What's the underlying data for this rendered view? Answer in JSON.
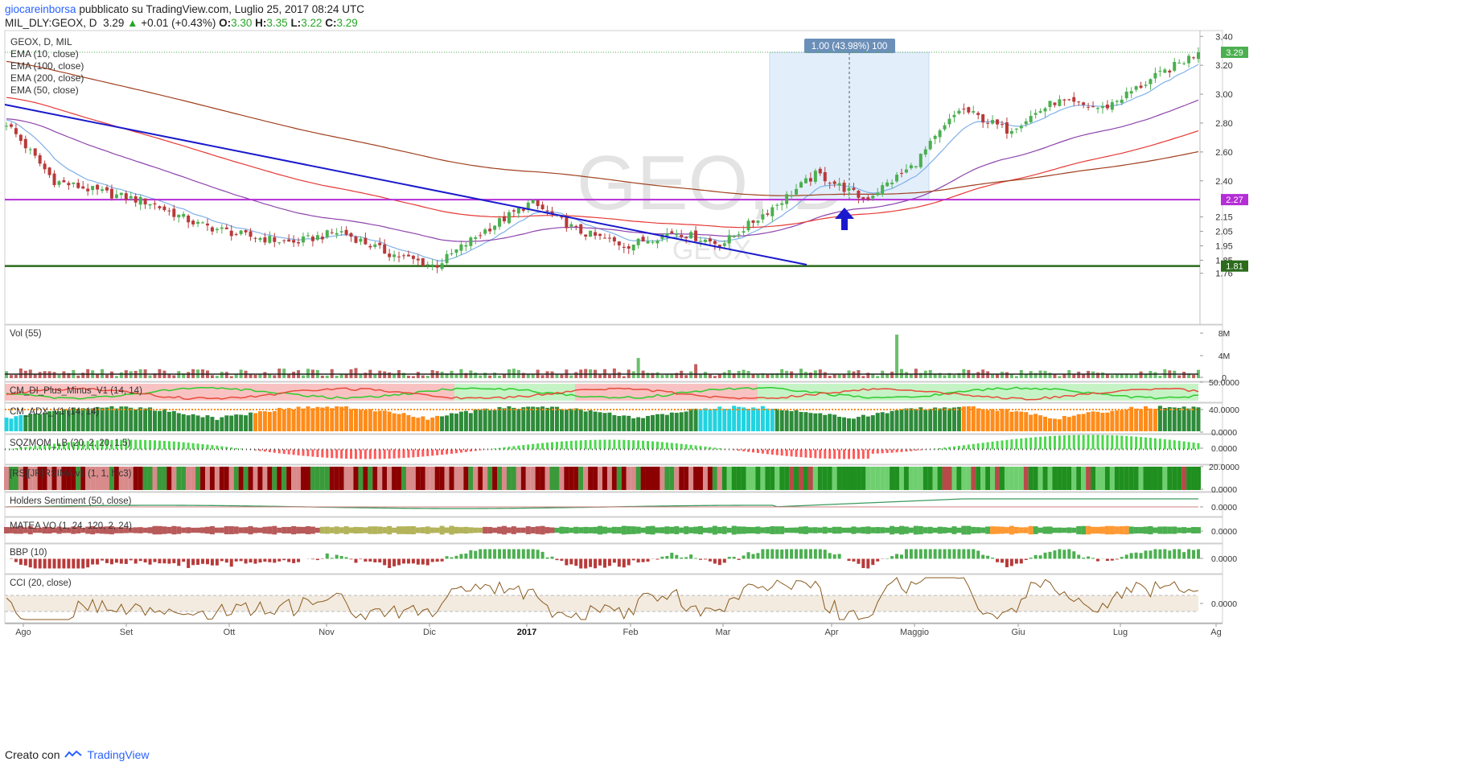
{
  "header": {
    "user": "giocareinborsa",
    "published_text": "pubblicato su TradingView.com, Luglio 25, 2017 08:24 UTC",
    "symbol": "MIL_DLY:GEOX, D",
    "last": "3.29",
    "change_arrow": "▲",
    "change": "+0.01 (+0.43%)",
    "open_label": "O:",
    "open": "3.30",
    "high_label": "H:",
    "high": "3.35",
    "low_label": "L:",
    "low": "3.22",
    "close_label": "C:",
    "close": "3.29"
  },
  "watermark": {
    "main": "GEO, D",
    "sub": "GEOX"
  },
  "legend": {
    "title": "GEOX, D, MIL",
    "items": [
      "EMA (10, close)",
      "EMA (100, close)",
      "EMA (200, close)",
      "EMA (50, close)"
    ]
  },
  "measure_label": "1.00 (43.98%) 100",
  "price_axis": {
    "ticks": [
      "3.40",
      "3.20",
      "3.00",
      "2.80",
      "2.60",
      "2.40",
      "2.15",
      "2.05",
      "1.95",
      "1.85",
      "1.76"
    ],
    "badges": [
      "3.29",
      "2.27",
      "1.81"
    ]
  },
  "time_axis": [
    "Ago",
    "Set",
    "Ott",
    "Nov",
    "Dic",
    "2017",
    "Feb",
    "Mar",
    "Apr",
    "Maggio",
    "Giu",
    "Lug",
    "Ag"
  ],
  "panes": [
    {
      "title": "Vol (55)",
      "ticks": [
        "8M",
        "4M",
        "0"
      ]
    },
    {
      "title": "CM_DI_Plus_Minus_V1 (14, 14)",
      "ticks": [
        "50.0000"
      ]
    },
    {
      "title": "CM_ADX_V1 (14, 14)",
      "ticks": [
        "40.0000",
        "0.0000"
      ]
    },
    {
      "title": "SQZMOM_LB (20, 2, 20, 1.5)",
      "ticks": [
        "0.0000"
      ]
    },
    {
      "title": "[RS][JR]RSIMA v1 (1, 1, hlc3)",
      "ticks": [
        "20.0000",
        "0.0000"
      ]
    },
    {
      "title": "Holders Sentiment (50, close)",
      "ticks": [
        "0.0000"
      ]
    },
    {
      "title": "MATEA VO (1, 24, 120, 2, 24)",
      "ticks": [
        "0.0000"
      ]
    },
    {
      "title": "BBP (10)",
      "ticks": [
        "0.0000"
      ]
    },
    {
      "title": "CCI (20, close)",
      "ticks": [
        "0.0000"
      ]
    }
  ],
  "footer": {
    "created": "Creato con",
    "brand": "TradingView"
  },
  "colors": {
    "up": "#4caf50",
    "down": "#b83a3a",
    "trendline": "#1a1acc",
    "support_purple": "#b42ed6",
    "support_green": "#2b6b1b",
    "ema10": "#7fb0e8",
    "ema50": "#8e44ad",
    "ema100": "#e53935",
    "ema200": "#a0401f"
  },
  "chart_data": {
    "type": "candlestick",
    "symbol": "GEOX",
    "interval": "D",
    "x_range": [
      "2017-07-25"
    ],
    "ylim": [
      1.76,
      3.4
    ],
    "series": [
      {
        "name": "GEOX",
        "last_close": 3.29,
        "open": 3.3,
        "high": 3.35,
        "low": 3.22,
        "close": 3.29
      },
      {
        "name": "EMA (10, close)"
      },
      {
        "name": "EMA (100, close)"
      },
      {
        "name": "EMA (200, close)"
      },
      {
        "name": "EMA (50, close)"
      }
    ],
    "horizontal_levels": [
      3.29,
      2.27,
      1.81
    ],
    "measure": "1.00 (43.98%) 100",
    "annotations": [
      "descending trendline",
      "breakout arrow"
    ],
    "price_path": [
      {
        "x": "Ago",
        "y": 2.8
      },
      {
        "x": "Ago",
        "y": 2.4
      },
      {
        "x": "Set",
        "y": 2.32
      },
      {
        "x": "Set",
        "y": 2.25
      },
      {
        "x": "Ott",
        "y": 2.1
      },
      {
        "x": "Ott",
        "y": 2.02
      },
      {
        "x": "Nov",
        "y": 1.97
      },
      {
        "x": "Nov",
        "y": 2.05
      },
      {
        "x": "Nov",
        "y": 1.9
      },
      {
        "x": "Dic",
        "y": 1.81
      },
      {
        "x": "Dic",
        "y": 2.05
      },
      {
        "x": "2017",
        "y": 2.25
      },
      {
        "x": "2017",
        "y": 2.05
      },
      {
        "x": "Feb",
        "y": 1.95
      },
      {
        "x": "Feb",
        "y": 2.05
      },
      {
        "x": "Mar",
        "y": 1.96
      },
      {
        "x": "Mar",
        "y": 2.2
      },
      {
        "x": "Apr",
        "y": 2.45
      },
      {
        "x": "Apr",
        "y": 2.27
      },
      {
        "x": "Maggio",
        "y": 2.5
      },
      {
        "x": "Maggio",
        "y": 2.9
      },
      {
        "x": "Giu",
        "y": 2.75
      },
      {
        "x": "Giu",
        "y": 2.95
      },
      {
        "x": "Lug",
        "y": 2.9
      },
      {
        "x": "Lug",
        "y": 3.1
      },
      {
        "x": "Ag",
        "y": 3.29
      }
    ]
  }
}
